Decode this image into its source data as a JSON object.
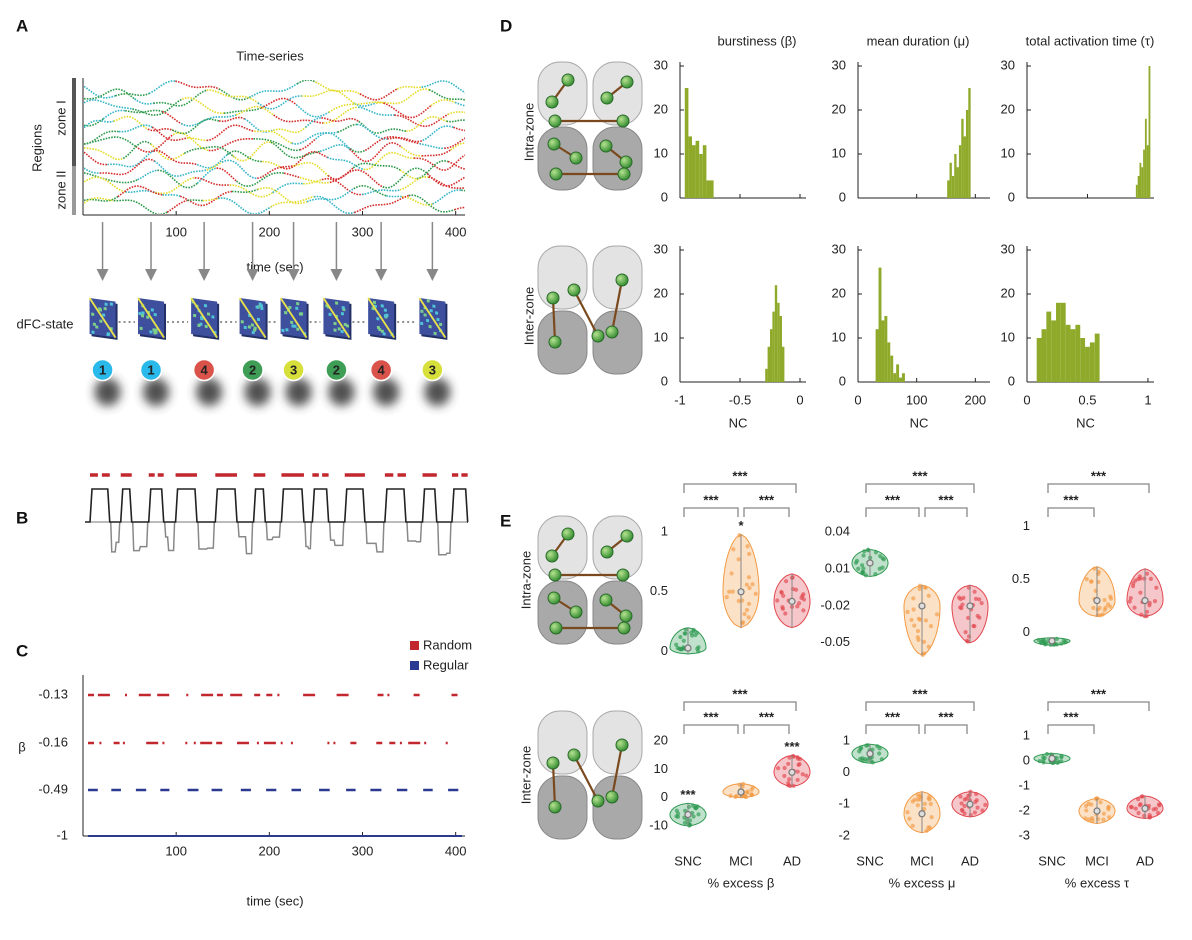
{
  "panel_labels": [
    "A",
    "B",
    "C",
    "D",
    "E"
  ],
  "timeseries": {
    "title": "Time-series",
    "ylabel": "Regions",
    "zones": [
      "zone I",
      "zone II"
    ],
    "xlabel": "time (sec)",
    "xlim": [
      0,
      410
    ],
    "xticks": [
      100,
      200,
      300,
      400
    ],
    "state_label": "dFC-state",
    "state_times": [
      21,
      73,
      130,
      182,
      226,
      272,
      320,
      375
    ],
    "states": [
      "1",
      "1",
      "4",
      "2",
      "3",
      "2",
      "4",
      "3"
    ],
    "state_colors": [
      "#29b9ea",
      "#29b9ea",
      "#d9534a",
      "#3f9e55",
      "#d7df3b",
      "#3f9e55",
      "#d9534a",
      "#d7df3b"
    ]
  },
  "events": {
    "ylabel": "β",
    "xlabel": "time (sec)",
    "xlim": [
      0,
      410
    ],
    "xticks": [
      100,
      200,
      300,
      400
    ],
    "series": [
      {
        "name": "Random",
        "color": "#c1272d",
        "levels": [
          -0.13,
          -0.16
        ]
      },
      {
        "name": "Regular",
        "color": "#2b3990",
        "levels": [
          -0.49,
          -1
        ]
      }
    ]
  },
  "histograms": {
    "color": "#8faa2a",
    "column_titles": [
      "burstiness (β)",
      "mean duration (μ)",
      "total activation time (τ)"
    ],
    "row_labels": [
      "Intra-zone",
      "Inter-zone"
    ],
    "xlabel": "NC",
    "ylim": [
      0,
      30
    ],
    "yticks": [
      0,
      10,
      20,
      30
    ],
    "columns": [
      {
        "xlim": [
          -1,
          0.05
        ],
        "xticks": [
          -1,
          -0.5,
          0
        ]
      },
      {
        "xlim": [
          0,
          225
        ],
        "xticks": [
          0,
          100,
          200
        ]
      },
      {
        "xlim": [
          0,
          1.05
        ],
        "xticks": [
          0,
          0.5,
          1
        ]
      }
    ],
    "rows": [
      [
        {
          "bins": [
            -0.96,
            -0.93,
            -0.9,
            -0.87,
            -0.84,
            -0.81,
            -0.78,
            -0.75,
            -0.72
          ],
          "counts": [
            25,
            14,
            12,
            13,
            10,
            12,
            4,
            4
          ]
        },
        {
          "bins": [
            152,
            156,
            160,
            164,
            168,
            172,
            176,
            180,
            184,
            188,
            192
          ],
          "counts": [
            4,
            8,
            5,
            10,
            7,
            12,
            18,
            14,
            20,
            25
          ]
        },
        {
          "bins": [
            0.9,
            0.915,
            0.93,
            0.945,
            0.96,
            0.975,
            0.99,
            1.005,
            1.02
          ],
          "counts": [
            3,
            5,
            8,
            7,
            11,
            18,
            12,
            30
          ]
        }
      ],
      [
        {
          "bins": [
            -0.29,
            -0.27,
            -0.25,
            -0.23,
            -0.21,
            -0.19,
            -0.17,
            -0.15,
            -0.13
          ],
          "counts": [
            3,
            8,
            12,
            16,
            22,
            18,
            15,
            8
          ]
        },
        {
          "bins": [
            30,
            35,
            40,
            45,
            50,
            55,
            60,
            65,
            70,
            75,
            80
          ],
          "counts": [
            12,
            26,
            14,
            15,
            9,
            6,
            2,
            4,
            1,
            2
          ]
        },
        {
          "bins": [
            0.08,
            0.12,
            0.16,
            0.2,
            0.24,
            0.28,
            0.32,
            0.36,
            0.4,
            0.44,
            0.48,
            0.52,
            0.56,
            0.6
          ],
          "counts": [
            10,
            12,
            16,
            14,
            18,
            18,
            13,
            12,
            13,
            10,
            8,
            9,
            11
          ]
        }
      ]
    ]
  },
  "violins": {
    "row_labels": [
      "Intra-zone",
      "Inter-zone"
    ],
    "groups": [
      "SNC",
      "MCI",
      "AD"
    ],
    "group_colors": [
      "#2e9a52",
      "#f39a43",
      "#e2474f"
    ],
    "mark_color": "#a3b52c",
    "xlabels": [
      "% excess β",
      "% excess μ",
      "% excess τ"
    ],
    "rows": [
      [
        {
          "ylim": [
            -0.07,
            1.1
          ],
          "yticks": [
            0,
            0.5,
            1
          ],
          "median": [
            0.03,
            0.5,
            0.42
          ],
          "min": [
            -0.02,
            0.2,
            0.2
          ],
          "max": [
            0.2,
            0.98,
            0.65
          ],
          "brackets": [
            {
              "groups": [
                0,
                2
              ],
              "label": "***"
            },
            {
              "groups": [
                0,
                1
              ],
              "label": "***"
            },
            {
              "groups": [
                1,
                2
              ],
              "label": "***"
            }
          ],
          "marks": [
            {
              "group": 1,
              "label": "*"
            }
          ]
        },
        {
          "ylim": [
            -0.064,
            0.05
          ],
          "yticks": [
            -0.05,
            -0.02,
            0.01,
            0.04
          ],
          "median": [
            0.015,
            -0.02,
            -0.02
          ],
          "min": [
            0.004,
            -0.06,
            -0.05
          ],
          "max": [
            0.026,
            -0.003,
            -0.003
          ],
          "brackets": [
            {
              "groups": [
                0,
                2
              ],
              "label": "***"
            },
            {
              "groups": [
                0,
                1
              ],
              "label": "***"
            },
            {
              "groups": [
                1,
                2
              ],
              "label": "***"
            }
          ],
          "marks": []
        },
        {
          "ylim": [
            -0.26,
            1.06
          ],
          "yticks": [
            0,
            0.5,
            1
          ],
          "median": [
            -0.08,
            0.3,
            0.3
          ],
          "min": [
            -0.12,
            0.15,
            0.15
          ],
          "max": [
            -0.05,
            0.62,
            0.6
          ],
          "brackets": [
            {
              "groups": [
                0,
                2
              ],
              "label": "***"
            },
            {
              "groups": [
                0,
                1
              ],
              "label": "***"
            }
          ],
          "marks": []
        }
      ],
      [
        {
          "ylim": [
            -15,
            24
          ],
          "yticks": [
            -10,
            0,
            10,
            20
          ],
          "median": [
            -6,
            2,
            9
          ],
          "min": [
            -10,
            0,
            4
          ],
          "max": [
            -2,
            5,
            15
          ],
          "brackets": [
            {
              "groups": [
                0,
                2
              ],
              "label": "***"
            },
            {
              "groups": [
                0,
                1
              ],
              "label": "***"
            },
            {
              "groups": [
                1,
                2
              ],
              "label": "***"
            }
          ],
          "marks": [
            {
              "group": 0,
              "label": "***"
            },
            {
              "group": 2,
              "label": "***"
            }
          ]
        },
        {
          "ylim": [
            -2.13,
            1.35
          ],
          "yticks": [
            -2,
            -1,
            0,
            1
          ],
          "median": [
            0.6,
            -1.3,
            -1
          ],
          "min": [
            0.3,
            -1.9,
            -1.4
          ],
          "max": [
            0.9,
            -0.6,
            -0.6
          ],
          "brackets": [
            {
              "groups": [
                0,
                2
              ],
              "label": "***"
            },
            {
              "groups": [
                0,
                1
              ],
              "label": "***"
            },
            {
              "groups": [
                1,
                2
              ],
              "label": "***"
            }
          ],
          "marks": []
        },
        {
          "ylim": [
            -3.16,
            1.24
          ],
          "yticks": [
            -3,
            -2,
            -1,
            0,
            1
          ],
          "median": [
            0.1,
            -2,
            -1.9
          ],
          "min": [
            -0.1,
            -2.5,
            -2.3
          ],
          "max": [
            0.3,
            -1.5,
            -1.4
          ],
          "brackets": [
            {
              "groups": [
                0,
                2
              ],
              "label": "***"
            },
            {
              "groups": [
                0,
                1
              ],
              "label": "***"
            }
          ],
          "marks": []
        }
      ]
    ]
  }
}
